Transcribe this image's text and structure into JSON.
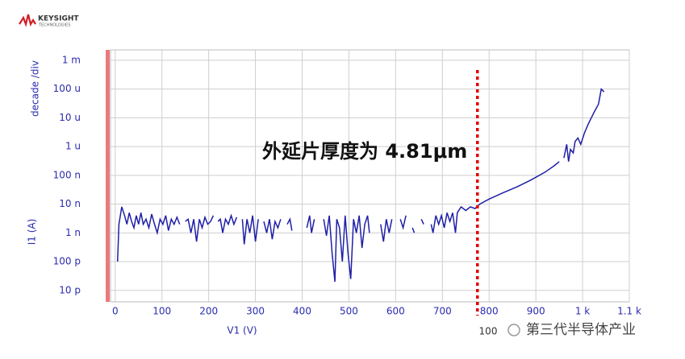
{
  "chart_data": {
    "type": "line",
    "y_label_top": "decade /div",
    "ylabel": "I1 (A)",
    "xlabel": "V1 (V)",
    "annotation": "外延片厚度为 4.81μm",
    "marker": {
      "x": 775,
      "color": "#e00000",
      "label": "100"
    },
    "color": "#1f1fa8",
    "log_y": true,
    "grid": true,
    "xlim": [
      -10,
      1100
    ],
    "ylim": [
      4e-12,
      0.0023
    ],
    "xticks": [
      0,
      100,
      200,
      300,
      400,
      500,
      600,
      700,
      800,
      900,
      {
        "value": 1000,
        "label": "1 k"
      },
      {
        "value": 1100,
        "label": "1.1 k"
      }
    ],
    "yticks": [
      {
        "value": 0.001,
        "label": "1 m"
      },
      {
        "value": 0.0001,
        "label": "100 u"
      },
      {
        "value": 1e-05,
        "label": "10 u"
      },
      {
        "value": 1e-06,
        "label": "1 u"
      },
      {
        "value": 1e-07,
        "label": "100 n"
      },
      {
        "value": 1e-08,
        "label": "10 n"
      },
      {
        "value": 1e-09,
        "label": "1 n"
      },
      {
        "value": 1e-10,
        "label": "100 p"
      },
      {
        "value": 1e-11,
        "label": "10 p"
      }
    ],
    "x": [
      5,
      8,
      14,
      20,
      25,
      30,
      35,
      40,
      45,
      50,
      55,
      60,
      66,
      72,
      78,
      84,
      90,
      96,
      102,
      108,
      114,
      120,
      126,
      132,
      138,
      143,
      150,
      156,
      162,
      168,
      174,
      180,
      186,
      192,
      198,
      204,
      210,
      214,
      220,
      225,
      230,
      236,
      242,
      248,
      254,
      260,
      264,
      272,
      276,
      282,
      288,
      294,
      300,
      306,
      310,
      318,
      324,
      330,
      336,
      342,
      348,
      354,
      360,
      368,
      374,
      378,
      400,
      410,
      416,
      420,
      426,
      440,
      446,
      452,
      458,
      464,
      470,
      474,
      480,
      486,
      492,
      498,
      504,
      510,
      516,
      522,
      528,
      534,
      540,
      544,
      560,
      568,
      574,
      580,
      586,
      592,
      600,
      610,
      616,
      622,
      630,
      636,
      640,
      645,
      655,
      660,
      670,
      676,
      680,
      686,
      692,
      698,
      704,
      710,
      716,
      722,
      728,
      732,
      740,
      750,
      760,
      770,
      780,
      800,
      830,
      860,
      890,
      920,
      940,
      950,
      955,
      960,
      966,
      970,
      974,
      980,
      984,
      990,
      996,
      1004,
      1012,
      1024,
      1034,
      1040,
      1046
    ],
    "values": [
      1e-10,
      2e-09,
      8e-09,
      4e-09,
      2e-09,
      5e-09,
      2.5e-09,
      1.5e-09,
      4e-09,
      2e-09,
      5e-09,
      2e-09,
      3e-09,
      1.5e-09,
      4.5e-09,
      2e-09,
      1e-09,
      3e-09,
      2e-09,
      4e-09,
      1.2e-09,
      3e-09,
      2e-09,
      3.5e-09,
      2e-09,
      null,
      2.5e-09,
      3e-09,
      1e-09,
      3e-09,
      5e-10,
      3e-09,
      1.5e-09,
      3.5e-09,
      2e-09,
      2.5e-09,
      4e-09,
      null,
      2.5e-09,
      3e-09,
      1e-09,
      3e-09,
      2e-09,
      4e-09,
      2e-09,
      3.5e-09,
      null,
      3e-09,
      4e-10,
      3e-09,
      1e-09,
      4e-09,
      5e-10,
      3e-09,
      null,
      2.5e-09,
      1e-09,
      3e-09,
      6e-10,
      2.5e-09,
      1.5e-09,
      3e-09,
      null,
      2e-09,
      3e-09,
      1.2e-09,
      null,
      1.5e-09,
      4e-09,
      1e-09,
      3e-09,
      null,
      3e-09,
      8e-10,
      4e-09,
      2e-10,
      2e-11,
      3e-09,
      1.5e-09,
      1e-10,
      4e-09,
      2e-10,
      2.5e-11,
      3e-09,
      1e-09,
      4e-09,
      3e-10,
      2e-09,
      4e-09,
      1e-09,
      null,
      2e-09,
      5e-10,
      3e-09,
      1e-09,
      3e-09,
      null,
      3e-09,
      1.5e-09,
      4e-09,
      null,
      1.5e-09,
      1e-09,
      null,
      3e-09,
      2e-09,
      null,
      2e-09,
      1e-09,
      4e-09,
      2e-09,
      4e-09,
      1.5e-09,
      5e-09,
      2.5e-09,
      5e-09,
      1e-09,
      5e-09,
      8e-09,
      6e-09,
      8e-09,
      7e-09,
      1e-08,
      1.5e-08,
      2.5e-08,
      4e-08,
      7e-08,
      1.3e-07,
      2.2e-07,
      3e-07,
      null,
      4e-07,
      1.2e-06,
      3e-07,
      8e-07,
      6e-07,
      1.5e-06,
      2e-06,
      1.2e-06,
      3e-06,
      6e-06,
      1.5e-05,
      3e-05,
      0.0001,
      8e-05
    ]
  },
  "logo": {
    "brand": "KEYSIGHT",
    "sub": "TECHNOLOGIES"
  },
  "watermark": "第三代半导体产业"
}
